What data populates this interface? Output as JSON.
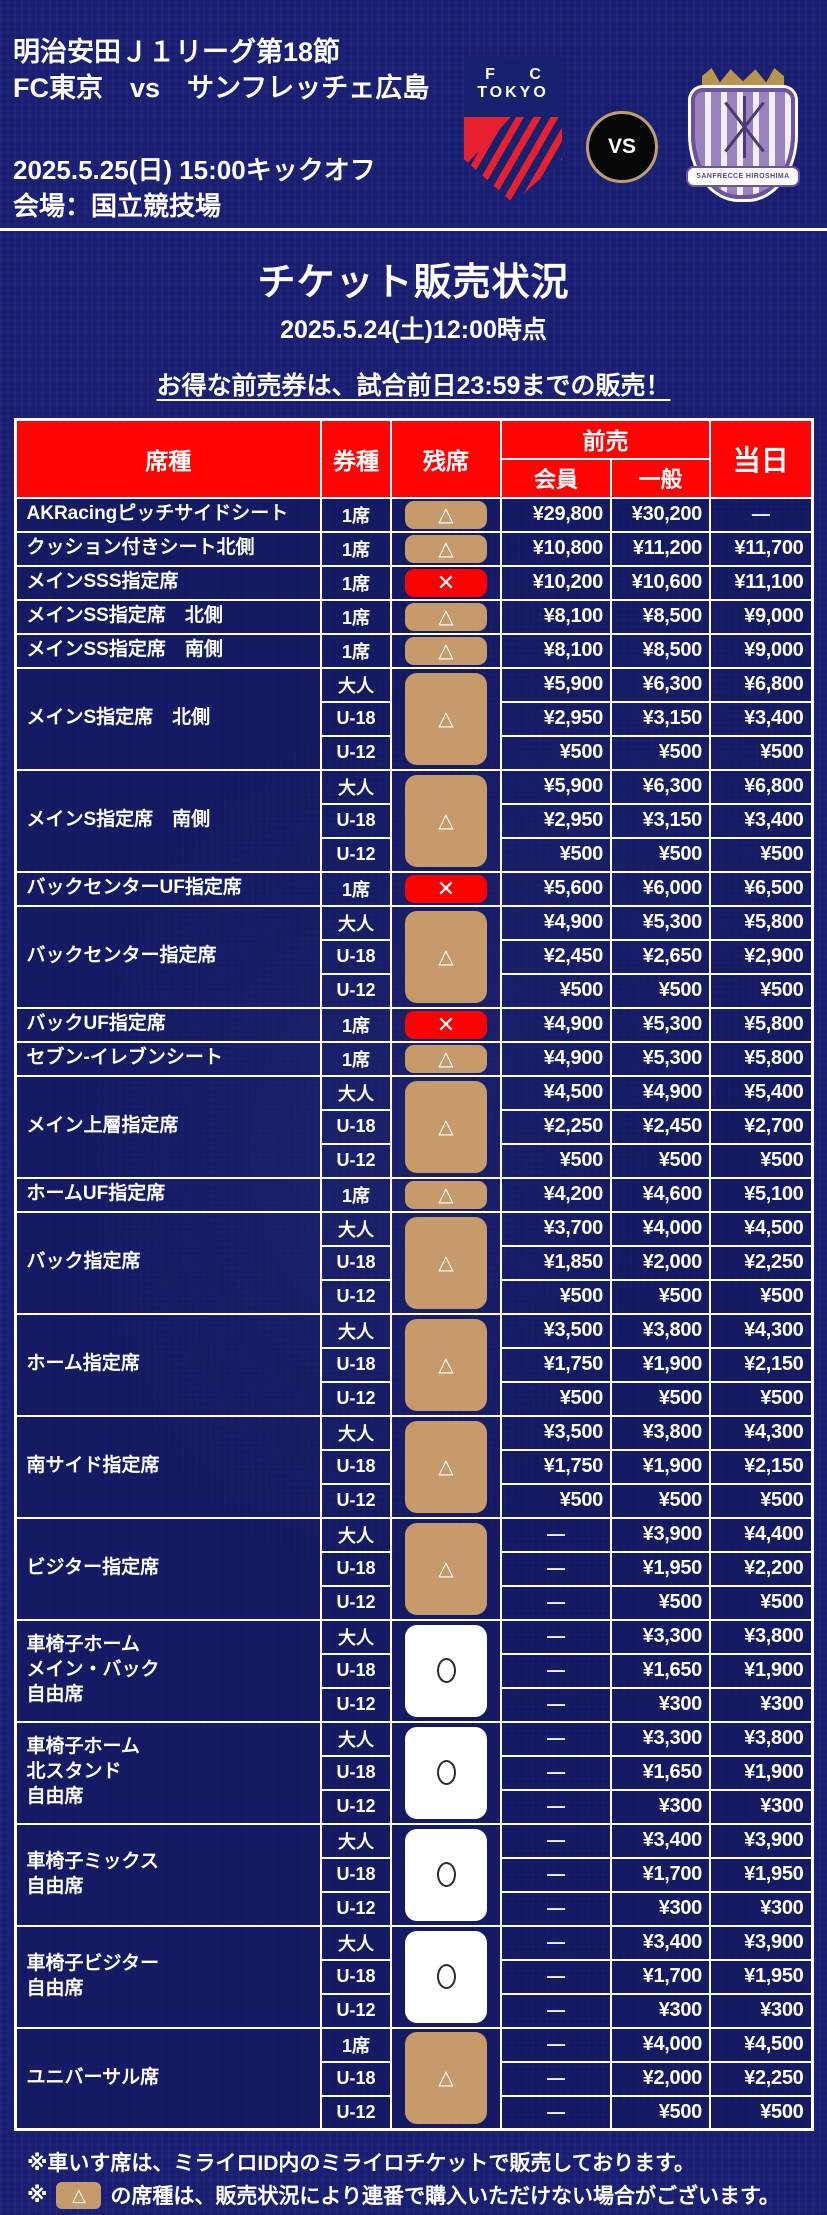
{
  "header": {
    "competition": "明治安田Ｊ１リーグ第18節",
    "matchup": "FC東京　vs　サンフレッチェ広島",
    "kickoff": "2025.5.25(日) 15:00キックオフ",
    "venue": "会場：国立競技場",
    "home_crest": {
      "line1": "F C",
      "line2": "TOKYO"
    },
    "vs_label": "VS",
    "away_crest": {
      "name": "SANFRECCE HIROSHIMA"
    }
  },
  "title": {
    "heading": "チケット販売状況",
    "as_of": "2025.5.24(土)12:00時点",
    "notice": "お得な前売券は、試合前日23:59までの販売！"
  },
  "table": {
    "headers": {
      "seat": "席種",
      "ticket": "券種",
      "stock": "残席",
      "advance": "前売",
      "member": "会員",
      "general": "一般",
      "sameday": "当日"
    },
    "status_symbols": {
      "triangle": "△",
      "cross": "✕",
      "circle": "○"
    },
    "dash": "―",
    "colors": {
      "background_navy": "#1b2076",
      "header_red": "#fe0404",
      "badge_tan": "#c69a6a",
      "badge_red": "#fb0202",
      "badge_white": "#ffffff",
      "border_white": "#ffffff",
      "fc_tokyo_navy": "#16226f",
      "fc_tokyo_red": "#e6202f",
      "sanfrecce_purple": "#6b539e"
    },
    "rows": [
      {
        "seat": "AKRacingピッチサイドシート",
        "status": "triangle",
        "subrows": [
          {
            "ticket": "1席",
            "member": "¥29,800",
            "general": "¥30,200",
            "sameday": "―"
          }
        ]
      },
      {
        "seat": "クッション付きシート北側",
        "status": "triangle",
        "subrows": [
          {
            "ticket": "1席",
            "member": "¥10,800",
            "general": "¥11,200",
            "sameday": "¥11,700"
          }
        ]
      },
      {
        "seat": "メインSSS指定席",
        "status": "cross",
        "subrows": [
          {
            "ticket": "1席",
            "member": "¥10,200",
            "general": "¥10,600",
            "sameday": "¥11,100"
          }
        ]
      },
      {
        "seat": "メインSS指定席　北側",
        "status": "triangle",
        "subrows": [
          {
            "ticket": "1席",
            "member": "¥8,100",
            "general": "¥8,500",
            "sameday": "¥9,000"
          }
        ]
      },
      {
        "seat": "メインSS指定席　南側",
        "status": "triangle",
        "subrows": [
          {
            "ticket": "1席",
            "member": "¥8,100",
            "general": "¥8,500",
            "sameday": "¥9,000"
          }
        ]
      },
      {
        "seat": "メインS指定席　北側",
        "status": "triangle",
        "subrows": [
          {
            "ticket": "大人",
            "member": "¥5,900",
            "general": "¥6,300",
            "sameday": "¥6,800"
          },
          {
            "ticket": "U-18",
            "member": "¥2,950",
            "general": "¥3,150",
            "sameday": "¥3,400"
          },
          {
            "ticket": "U-12",
            "member": "¥500",
            "general": "¥500",
            "sameday": "¥500"
          }
        ]
      },
      {
        "seat": "メインS指定席　南側",
        "status": "triangle",
        "subrows": [
          {
            "ticket": "大人",
            "member": "¥5,900",
            "general": "¥6,300",
            "sameday": "¥6,800"
          },
          {
            "ticket": "U-18",
            "member": "¥2,950",
            "general": "¥3,150",
            "sameday": "¥3,400"
          },
          {
            "ticket": "U-12",
            "member": "¥500",
            "general": "¥500",
            "sameday": "¥500"
          }
        ]
      },
      {
        "seat": "バックセンターUF指定席",
        "status": "cross",
        "subrows": [
          {
            "ticket": "1席",
            "member": "¥5,600",
            "general": "¥6,000",
            "sameday": "¥6,500"
          }
        ]
      },
      {
        "seat": "バックセンター指定席",
        "status": "triangle",
        "subrows": [
          {
            "ticket": "大人",
            "member": "¥4,900",
            "general": "¥5,300",
            "sameday": "¥5,800"
          },
          {
            "ticket": "U-18",
            "member": "¥2,450",
            "general": "¥2,650",
            "sameday": "¥2,900"
          },
          {
            "ticket": "U-12",
            "member": "¥500",
            "general": "¥500",
            "sameday": "¥500"
          }
        ]
      },
      {
        "seat": "バックUF指定席",
        "status": "cross",
        "subrows": [
          {
            "ticket": "1席",
            "member": "¥4,900",
            "general": "¥5,300",
            "sameday": "¥5,800"
          }
        ]
      },
      {
        "seat": "セブン-イレブンシート",
        "status": "triangle",
        "subrows": [
          {
            "ticket": "1席",
            "member": "¥4,900",
            "general": "¥5,300",
            "sameday": "¥5,800"
          }
        ]
      },
      {
        "seat": "メイン上層指定席",
        "status": "triangle",
        "subrows": [
          {
            "ticket": "大人",
            "member": "¥4,500",
            "general": "¥4,900",
            "sameday": "¥5,400"
          },
          {
            "ticket": "U-18",
            "member": "¥2,250",
            "general": "¥2,450",
            "sameday": "¥2,700"
          },
          {
            "ticket": "U-12",
            "member": "¥500",
            "general": "¥500",
            "sameday": "¥500"
          }
        ]
      },
      {
        "seat": "ホームUF指定席",
        "status": "triangle",
        "subrows": [
          {
            "ticket": "1席",
            "member": "¥4,200",
            "general": "¥4,600",
            "sameday": "¥5,100"
          }
        ]
      },
      {
        "seat": "バック指定席",
        "status": "triangle",
        "subrows": [
          {
            "ticket": "大人",
            "member": "¥3,700",
            "general": "¥4,000",
            "sameday": "¥4,500"
          },
          {
            "ticket": "U-18",
            "member": "¥1,850",
            "general": "¥2,000",
            "sameday": "¥2,250"
          },
          {
            "ticket": "U-12",
            "member": "¥500",
            "general": "¥500",
            "sameday": "¥500"
          }
        ]
      },
      {
        "seat": "ホーム指定席",
        "status": "triangle",
        "subrows": [
          {
            "ticket": "大人",
            "member": "¥3,500",
            "general": "¥3,800",
            "sameday": "¥4,300"
          },
          {
            "ticket": "U-18",
            "member": "¥1,750",
            "general": "¥1,900",
            "sameday": "¥2,150"
          },
          {
            "ticket": "U-12",
            "member": "¥500",
            "general": "¥500",
            "sameday": "¥500"
          }
        ]
      },
      {
        "seat": "南サイド指定席",
        "status": "triangle",
        "subrows": [
          {
            "ticket": "大人",
            "member": "¥3,500",
            "general": "¥3,800",
            "sameday": "¥4,300"
          },
          {
            "ticket": "U-18",
            "member": "¥1,750",
            "general": "¥1,900",
            "sameday": "¥2,150"
          },
          {
            "ticket": "U-12",
            "member": "¥500",
            "general": "¥500",
            "sameday": "¥500"
          }
        ]
      },
      {
        "seat": "ビジター指定席",
        "status": "triangle",
        "subrows": [
          {
            "ticket": "大人",
            "member": "―",
            "general": "¥3,900",
            "sameday": "¥4,400"
          },
          {
            "ticket": "U-18",
            "member": "―",
            "general": "¥1,950",
            "sameday": "¥2,200"
          },
          {
            "ticket": "U-12",
            "member": "―",
            "general": "¥500",
            "sameday": "¥500"
          }
        ]
      },
      {
        "seat": "車椅子ホーム\nメイン・バック\n自由席",
        "status": "circle",
        "subrows": [
          {
            "ticket": "大人",
            "member": "―",
            "general": "¥3,300",
            "sameday": "¥3,800"
          },
          {
            "ticket": "U-18",
            "member": "―",
            "general": "¥1,650",
            "sameday": "¥1,900"
          },
          {
            "ticket": "U-12",
            "member": "―",
            "general": "¥300",
            "sameday": "¥300"
          }
        ]
      },
      {
        "seat": "車椅子ホーム\n北スタンド\n自由席",
        "status": "circle",
        "subrows": [
          {
            "ticket": "大人",
            "member": "―",
            "general": "¥3,300",
            "sameday": "¥3,800"
          },
          {
            "ticket": "U-18",
            "member": "―",
            "general": "¥1,650",
            "sameday": "¥1,900"
          },
          {
            "ticket": "U-12",
            "member": "―",
            "general": "¥300",
            "sameday": "¥300"
          }
        ]
      },
      {
        "seat": "車椅子ミックス\n自由席",
        "status": "circle",
        "subrows": [
          {
            "ticket": "大人",
            "member": "―",
            "general": "¥3,400",
            "sameday": "¥3,900"
          },
          {
            "ticket": "U-18",
            "member": "―",
            "general": "¥1,700",
            "sameday": "¥1,950"
          },
          {
            "ticket": "U-12",
            "member": "―",
            "general": "¥300",
            "sameday": "¥300"
          }
        ]
      },
      {
        "seat": "車椅子ビジター\n自由席",
        "status": "circle",
        "subrows": [
          {
            "ticket": "大人",
            "member": "―",
            "general": "¥3,400",
            "sameday": "¥3,900"
          },
          {
            "ticket": "U-18",
            "member": "―",
            "general": "¥1,700",
            "sameday": "¥1,950"
          },
          {
            "ticket": "U-12",
            "member": "―",
            "general": "¥300",
            "sameday": "¥300"
          }
        ]
      },
      {
        "seat": "ユニバーサル席",
        "status": "triangle",
        "subrows": [
          {
            "ticket": "1席",
            "member": "―",
            "general": "¥4,000",
            "sameday": "¥4,500"
          },
          {
            "ticket": "U-18",
            "member": "―",
            "general": "¥2,000",
            "sameday": "¥2,250"
          },
          {
            "ticket": "U-12",
            "member": "―",
            "general": "¥500",
            "sameday": "¥500"
          }
        ]
      }
    ]
  },
  "footnotes": {
    "line1": "※車いす席は、ミライロID内のミライロチケットで販売しております。",
    "line2_prefix": "※",
    "line2_badge": "△",
    "line2_text": "の席種は、販売状況により連番で購入いただけない場合がございます。"
  }
}
